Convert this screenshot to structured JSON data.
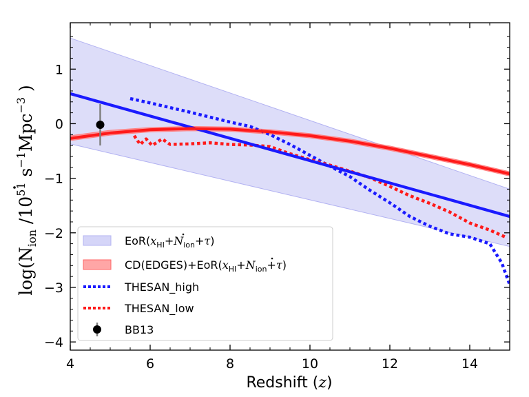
{
  "chart_data": {
    "type": "line",
    "xlabel": "Redshift (z)",
    "ylabel": "log(Ṅion /10^51 s^-1 Mpc^-3 )",
    "xlim": [
      4,
      15
    ],
    "ylim": [
      -4.15,
      1.85
    ],
    "x_ticks": [
      4,
      6,
      8,
      10,
      12,
      14
    ],
    "y_ticks": [
      -4,
      -3,
      -2,
      -1,
      0,
      1
    ],
    "x_tick_labels": [
      "4",
      "6",
      "8",
      "10",
      "12",
      "14"
    ],
    "y_tick_labels": [
      "−4",
      "−3",
      "−2",
      "−1",
      "0",
      "1"
    ],
    "grid": false,
    "legend_position": "lower-left",
    "series": [
      {
        "key": "eor_band",
        "name": "EoR(xHI+Ṅion+τ)",
        "kind": "band",
        "color": "#b3b3f2",
        "x": [
          4,
          15
        ],
        "upper": [
          1.57,
          -1.2
        ],
        "lower": [
          -0.37,
          -2.25
        ]
      },
      {
        "key": "edges_band",
        "name": "CD(EDGES)+EoR(xHI+Ṅion+τ)",
        "kind": "band",
        "color": "#ff8080",
        "x": [
          4,
          5,
          6,
          7,
          8,
          9,
          10,
          11,
          12,
          13,
          14,
          15
        ],
        "upper": [
          -0.22,
          -0.12,
          -0.07,
          -0.05,
          -0.06,
          -0.11,
          -0.18,
          -0.28,
          -0.41,
          -0.56,
          -0.71,
          -0.88
        ],
        "lower": [
          -0.31,
          -0.21,
          -0.15,
          -0.13,
          -0.14,
          -0.19,
          -0.26,
          -0.36,
          -0.49,
          -0.64,
          -0.79,
          -0.96
        ]
      },
      {
        "key": "eor_line",
        "kind": "line",
        "color": "#1a1aff",
        "x": [
          4,
          15
        ],
        "y": [
          0.55,
          -1.7
        ]
      },
      {
        "key": "edges_line",
        "kind": "line",
        "color": "#ff1a1a",
        "x": [
          4,
          5,
          6,
          7,
          8,
          9,
          10,
          11,
          12,
          13,
          14,
          15
        ],
        "y": [
          -0.27,
          -0.17,
          -0.11,
          -0.09,
          -0.1,
          -0.15,
          -0.22,
          -0.32,
          -0.45,
          -0.6,
          -0.75,
          -0.92
        ]
      },
      {
        "key": "thesan_high",
        "name": "THESAN_high",
        "kind": "dotted",
        "color": "#1a1aff",
        "x": [
          5.5,
          6,
          7,
          8,
          8.5,
          9,
          9.5,
          10,
          10.5,
          11,
          11.5,
          12,
          12.5,
          13,
          13.5,
          14,
          14.5,
          14.8,
          15
        ],
        "y": [
          0.46,
          0.38,
          0.21,
          0.03,
          -0.05,
          -0.2,
          -0.38,
          -0.58,
          -0.78,
          -0.97,
          -1.22,
          -1.45,
          -1.7,
          -1.88,
          -2.02,
          -2.08,
          -2.2,
          -2.55,
          -2.95
        ]
      },
      {
        "key": "thesan_low",
        "name": "THESAN_low",
        "kind": "dotted",
        "color": "#ff1a1a",
        "x": [
          5.6,
          5.75,
          5.9,
          6.05,
          6.3,
          6.5,
          7,
          7.5,
          8,
          8.5,
          9,
          9.5,
          10,
          10.5,
          11,
          11.5,
          12,
          12.5,
          13,
          13.5,
          14,
          14.5,
          14.9
        ],
        "y": [
          -0.22,
          -0.38,
          -0.28,
          -0.4,
          -0.28,
          -0.38,
          -0.37,
          -0.35,
          -0.38,
          -0.39,
          -0.42,
          -0.55,
          -0.66,
          -0.76,
          -0.87,
          -0.99,
          -1.15,
          -1.32,
          -1.46,
          -1.62,
          -1.82,
          -1.95,
          -2.08
        ]
      },
      {
        "key": "bb13",
        "name": "BB13",
        "kind": "errorbar",
        "color": "#000000",
        "errcolor": "#808080",
        "x": [
          4.75
        ],
        "y": [
          -0.02
        ],
        "yerr_low": [
          0.38
        ],
        "yerr_high": [
          0.38
        ]
      }
    ]
  },
  "legend": {
    "entries": [
      {
        "key": "eor_band",
        "label_main": "EoR(",
        "label_tail": ")"
      },
      {
        "key": "edges_band",
        "label_main": "CD(EDGES)+EoR(",
        "label_tail": ")"
      },
      {
        "key": "thesan_high",
        "label_main": "THESAN_high"
      },
      {
        "key": "thesan_low",
        "label_main": "THESAN_low"
      },
      {
        "key": "bb13",
        "label_main": "BB13"
      }
    ]
  }
}
